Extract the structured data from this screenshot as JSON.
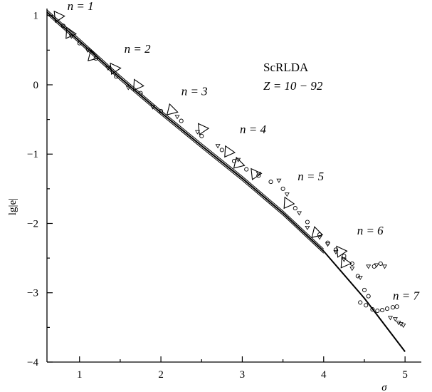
{
  "chart_data": {
    "type": "scatter",
    "title": "",
    "xlabel": "σ",
    "ylabel": "lg|e|",
    "xlim": [
      0.6,
      5.2
    ],
    "ylim": [
      -4,
      1.1
    ],
    "x_ticks": [
      {
        "value": 1,
        "label": "1"
      },
      {
        "value": 2,
        "label": "2"
      },
      {
        "value": 3,
        "label": "3"
      },
      {
        "value": 4,
        "label": "4"
      },
      {
        "value": 5,
        "label": "5"
      }
    ],
    "y_ticks": [
      {
        "value": 1,
        "label": "1"
      },
      {
        "value": 0,
        "label": "0"
      },
      {
        "value": -1,
        "label": "−1"
      },
      {
        "value": -2,
        "label": "−2"
      },
      {
        "value": -3,
        "label": "−3"
      },
      {
        "value": -4,
        "label": "−4"
      }
    ],
    "legend": {
      "method": "ScRLDA",
      "z_range": "Z = 10 − 92"
    },
    "annotations": [
      {
        "text": "n = 1",
        "x": 0.85,
        "y": 1.08
      },
      {
        "text": "n = 2",
        "x": 1.55,
        "y": 0.46
      },
      {
        "text": "n = 3",
        "x": 2.25,
        "y": -0.15
      },
      {
        "text": "n = 4",
        "x": 2.97,
        "y": -0.7
      },
      {
        "text": "n = 5",
        "x": 3.68,
        "y": -1.38
      },
      {
        "text": "n = 6",
        "x": 4.41,
        "y": -2.16
      },
      {
        "text": "n = 7",
        "x": 4.85,
        "y": -3.1
      }
    ],
    "fit_line": {
      "x": [
        0.6,
        1.0,
        1.5,
        2.0,
        2.5,
        3.0,
        3.5,
        4.0,
        4.5,
        5.0
      ],
      "y": [
        1.05,
        0.63,
        0.1,
        -0.4,
        -0.88,
        -1.35,
        -1.85,
        -2.4,
        -3.08,
        -3.85
      ]
    },
    "series": [
      {
        "marker": "large-triangle",
        "x": [
          0.73,
          0.87,
          1.15,
          1.42,
          1.7,
          2.12,
          2.5,
          2.82,
          2.94,
          3.15,
          3.55,
          3.9,
          4.2,
          4.25
        ],
        "y": [
          0.97,
          0.73,
          0.4,
          0.22,
          -0.02,
          -0.38,
          -0.65,
          -0.98,
          -1.15,
          -1.3,
          -1.72,
          -2.15,
          -2.42,
          -2.58
        ]
      },
      {
        "marker": "circle",
        "x": [
          0.8,
          1.0,
          1.2,
          1.45,
          1.75,
          2.0,
          2.25,
          2.5,
          2.75,
          2.9,
          3.05,
          3.2,
          3.35,
          3.5,
          3.65,
          3.8,
          3.95,
          4.05,
          4.15,
          4.25,
          4.35,
          4.42,
          4.5,
          4.55,
          4.6,
          4.66,
          4.72,
          4.78,
          4.85,
          4.9,
          4.45,
          4.52,
          4.62,
          4.7
        ],
        "y": [
          0.85,
          0.6,
          0.38,
          0.12,
          -0.12,
          -0.38,
          -0.52,
          -0.74,
          -0.94,
          -1.1,
          -1.22,
          -1.31,
          -1.4,
          -1.5,
          -1.78,
          -1.98,
          -2.16,
          -2.28,
          -2.38,
          -2.47,
          -2.58,
          -2.76,
          -2.96,
          -3.05,
          -3.24,
          -3.26,
          -3.25,
          -3.23,
          -3.21,
          -3.2,
          -3.14,
          -3.18,
          -2.62,
          -2.58
        ]
      },
      {
        "marker": "small-triangle",
        "x": [
          0.9,
          1.1,
          1.35,
          1.6,
          1.9,
          2.2,
          2.45,
          2.7,
          2.95,
          3.2,
          3.45,
          3.55,
          3.7,
          3.8,
          3.95,
          4.05,
          4.15,
          4.25,
          4.35,
          4.45,
          4.55,
          4.65,
          4.75,
          4.82,
          4.88,
          4.95,
          4.92,
          4.98
        ],
        "y": [
          0.7,
          0.5,
          0.24,
          -0.04,
          -0.32,
          -0.46,
          -0.68,
          -0.88,
          -1.08,
          -1.28,
          -1.38,
          -1.58,
          -1.85,
          -2.06,
          -2.2,
          -2.3,
          -2.41,
          -2.52,
          -2.65,
          -2.78,
          -2.62,
          -2.6,
          -2.62,
          -3.36,
          -3.38,
          -3.45,
          -3.43,
          -3.47
        ]
      }
    ]
  }
}
